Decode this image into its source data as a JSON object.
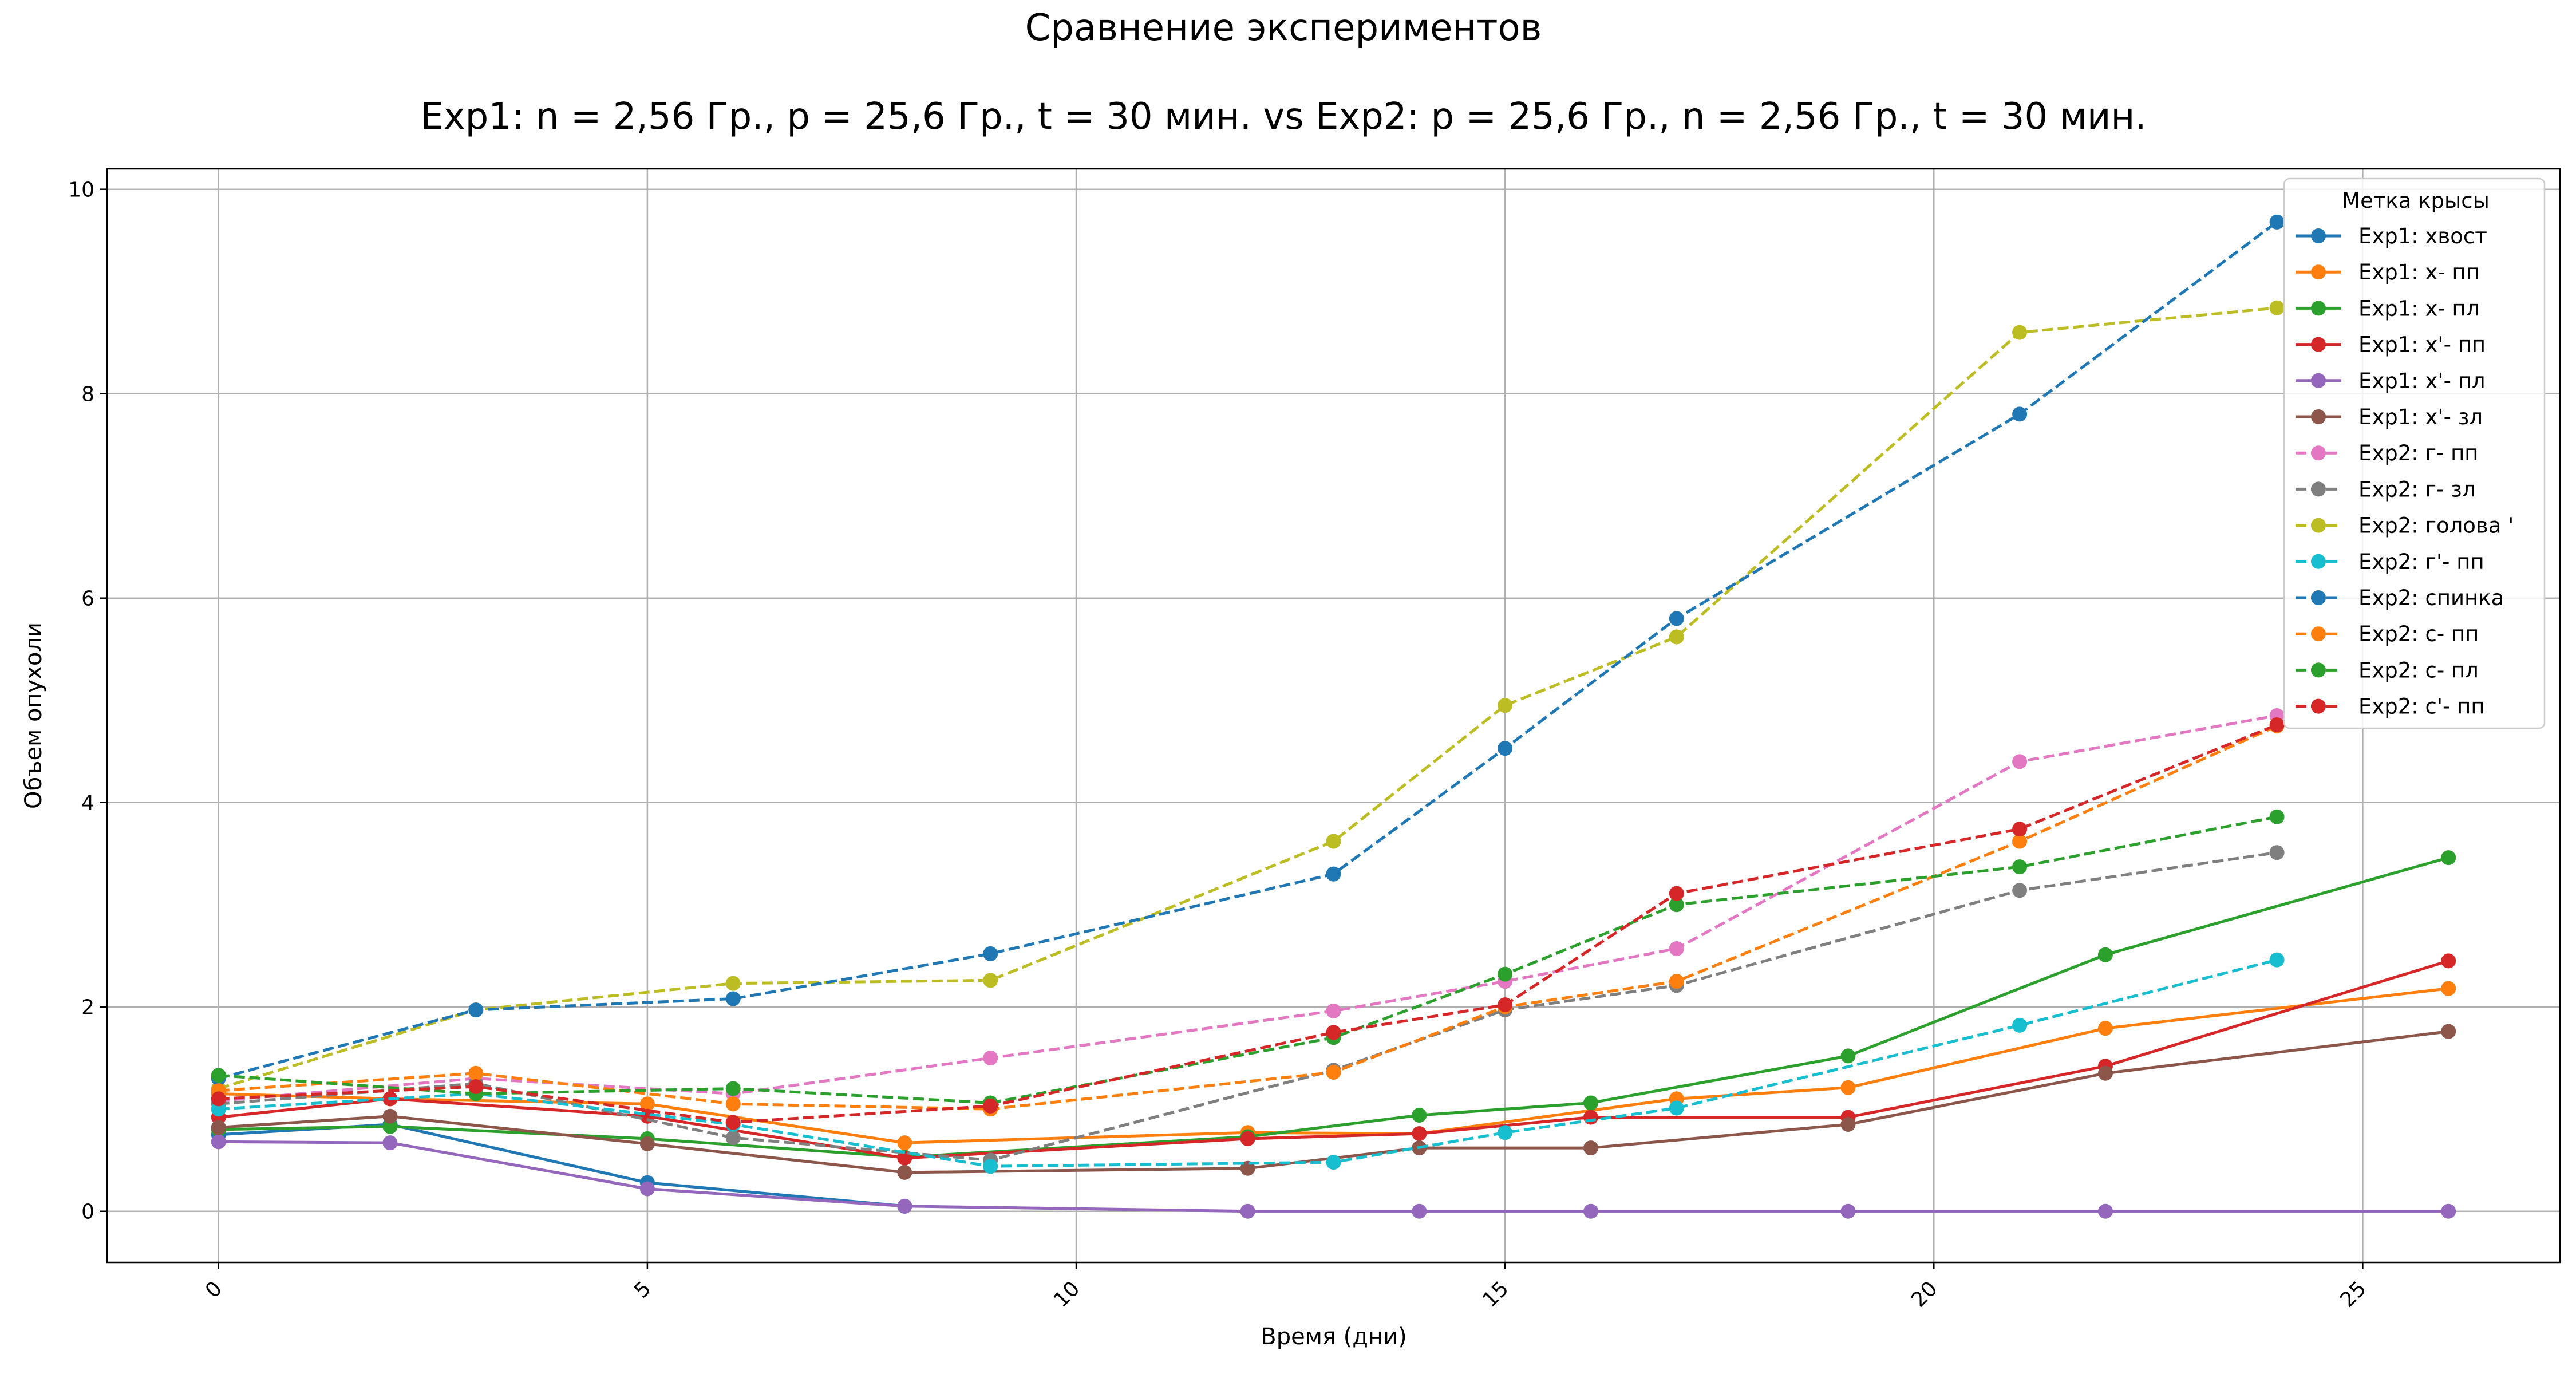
{
  "chart_data": {
    "type": "line",
    "title": "Сравнение экспериментов",
    "subtitle": "Exp1: n = 2,56 Гр., p = 25,6 Гр., t = 30 мин. vs Exp2: p = 25,6 Гр., n = 2,56 Гр., t = 30 мин.",
    "xlabel": "Время (дни)",
    "ylabel": "Объем опухоли",
    "xlim": [
      -1.3,
      27.3
    ],
    "ylim": [
      -0.5,
      10.2
    ],
    "xticks": [
      0,
      5,
      10,
      15,
      20,
      25
    ],
    "yticks": [
      0,
      2,
      4,
      6,
      8,
      10
    ],
    "grid": true,
    "legend": {
      "title": "Метка крысы",
      "position": "upper-right"
    },
    "series": [
      {
        "name": "Exp1: хвост",
        "style": "solid",
        "color": "#1f77b4",
        "x": [
          0,
          2,
          5,
          8
        ],
        "y": [
          0.75,
          0.85,
          0.28,
          0.05
        ]
      },
      {
        "name": "Exp1: х- пп",
        "style": "solid",
        "color": "#ff7f0e",
        "x": [
          0,
          2,
          5,
          8,
          12,
          14,
          17,
          19,
          22,
          26
        ],
        "y": [
          1.15,
          1.1,
          1.05,
          0.67,
          0.77,
          0.76,
          1.1,
          1.21,
          1.79,
          2.18
        ]
      },
      {
        "name": "Exp1: х- пл",
        "style": "solid",
        "color": "#2ca02c",
        "x": [
          0,
          2,
          5,
          8,
          12,
          14,
          16,
          19,
          22,
          26
        ],
        "y": [
          0.8,
          0.83,
          0.71,
          0.53,
          0.73,
          0.94,
          1.06,
          1.52,
          2.51,
          3.46
        ]
      },
      {
        "name": "Exp1: х'- пп",
        "style": "solid",
        "color": "#d62728",
        "x": [
          0,
          2,
          5,
          8,
          12,
          14,
          16,
          19,
          22,
          26
        ],
        "y": [
          0.92,
          1.1,
          0.93,
          0.52,
          0.71,
          0.76,
          0.92,
          0.92,
          1.42,
          2.45
        ]
      },
      {
        "name": "Exp1: х'- пл",
        "style": "solid",
        "color": "#9467bd",
        "x": [
          0,
          2,
          5,
          8,
          12,
          14,
          16,
          19,
          22,
          26
        ],
        "y": [
          0.68,
          0.67,
          0.22,
          0.05,
          0.0,
          0.0,
          0.0,
          0.0,
          0.0,
          0.0
        ]
      },
      {
        "name": "Exp1: х'- зл",
        "style": "solid",
        "color": "#8c564b",
        "x": [
          0,
          2,
          5,
          8,
          12,
          14,
          16,
          19,
          22,
          26
        ],
        "y": [
          0.82,
          0.93,
          0.66,
          0.38,
          0.42,
          0.62,
          0.62,
          0.85,
          1.35,
          1.76
        ]
      },
      {
        "name": "Exp2: г- пп",
        "style": "dashed",
        "color": "#e377c2",
        "x": [
          0,
          3,
          6,
          9,
          13,
          15,
          17,
          21,
          24
        ],
        "y": [
          1.08,
          1.3,
          1.15,
          1.5,
          1.96,
          2.25,
          2.57,
          4.4,
          4.85
        ]
      },
      {
        "name": "Exp2: г- зл",
        "style": "dashed",
        "color": "#7f7f7f",
        "x": [
          0,
          3,
          6,
          9,
          13,
          15,
          17,
          21,
          24
        ],
        "y": [
          1.05,
          1.25,
          0.72,
          0.5,
          1.38,
          1.97,
          2.21,
          3.14,
          3.51
        ]
      },
      {
        "name": "Exp2: голова '",
        "style": "dashed",
        "color": "#bcbd22",
        "x": [
          0,
          3,
          6,
          9,
          13,
          15,
          17,
          21,
          24
        ],
        "y": [
          1.2,
          1.97,
          2.23,
          2.26,
          3.62,
          4.95,
          5.62,
          8.6,
          8.84
        ]
      },
      {
        "name": "Exp2: г'- пп",
        "style": "dashed",
        "color": "#17becf",
        "x": [
          0,
          3,
          6,
          9,
          13,
          15,
          17,
          21,
          24
        ],
        "y": [
          1.0,
          1.15,
          0.85,
          0.44,
          0.48,
          0.77,
          1.01,
          1.82,
          2.46
        ]
      },
      {
        "name": "Exp2: спинка",
        "style": "dashed",
        "color": "#1f77b4",
        "x": [
          0,
          3,
          6,
          9,
          13,
          15,
          17,
          21,
          24
        ],
        "y": [
          1.3,
          1.97,
          2.08,
          2.52,
          3.3,
          4.53,
          5.8,
          7.8,
          9.68
        ]
      },
      {
        "name": "Exp2: с- пп",
        "style": "dashed",
        "color": "#ff7f0e",
        "x": [
          0,
          3,
          6,
          9,
          13,
          15,
          17,
          21,
          24
        ],
        "y": [
          1.18,
          1.35,
          1.05,
          1.0,
          1.36,
          2.0,
          2.25,
          3.62,
          4.75
        ]
      },
      {
        "name": "Exp2: с- пл",
        "style": "dashed",
        "color": "#2ca02c",
        "x": [
          0,
          3,
          6,
          9,
          13,
          15,
          17,
          21,
          24
        ],
        "y": [
          1.33,
          1.15,
          1.2,
          1.06,
          1.7,
          2.32,
          3.0,
          3.37,
          3.86
        ]
      },
      {
        "name": "Exp2: с'- пп",
        "style": "dashed",
        "color": "#d62728",
        "x": [
          0,
          3,
          6,
          9,
          13,
          15,
          17,
          21,
          24
        ],
        "y": [
          1.1,
          1.22,
          0.87,
          1.03,
          1.75,
          2.02,
          3.11,
          3.74,
          4.76
        ]
      }
    ]
  }
}
